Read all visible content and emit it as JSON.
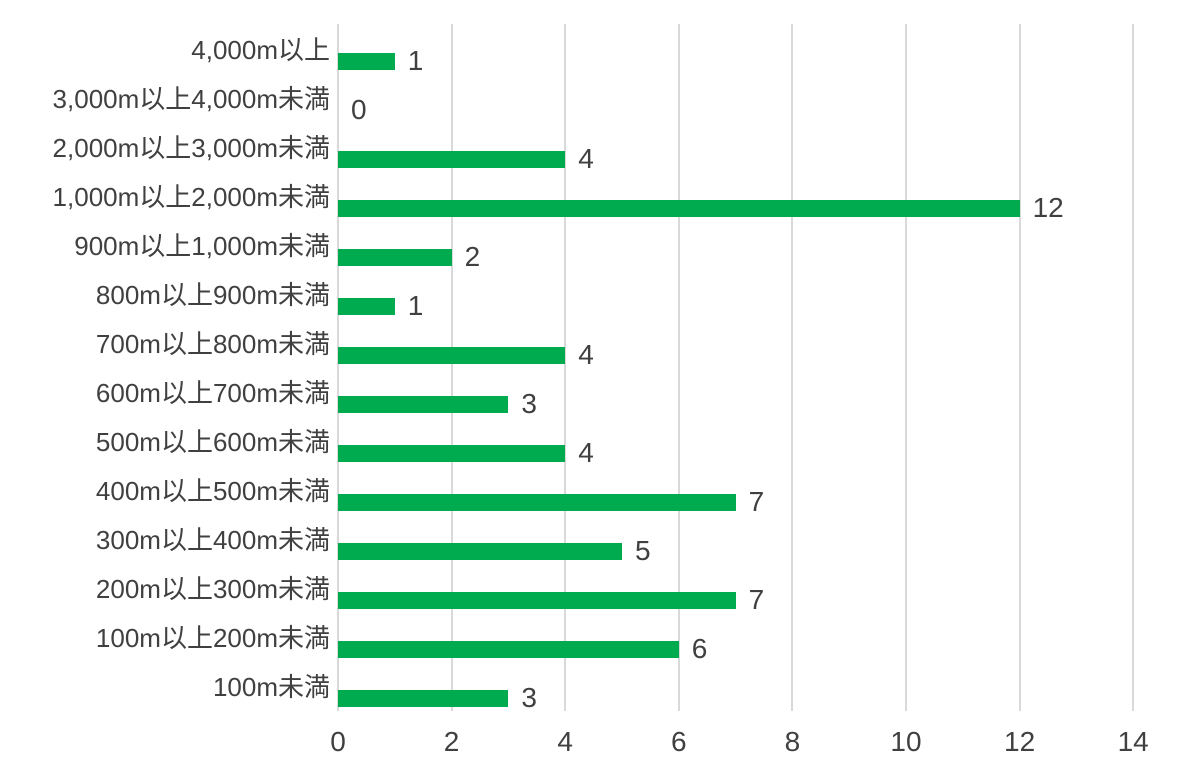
{
  "chart_data": {
    "type": "bar",
    "orientation": "horizontal",
    "title": "",
    "xlabel": "",
    "ylabel": "",
    "categories": [
      "4,000m以上",
      "3,000m以上4,000m未満",
      "2,000m以上3,000m未満",
      "1,000m以上2,000m未満",
      "900m以上1,000m未満",
      "800m以上900m未満",
      "700m以上800m未満",
      "600m以上700m未満",
      "500m以上600m未満",
      "400m以上500m未満",
      "300m以上400m未満",
      "200m以上300m未満",
      "100m以上200m未満",
      "100m未満"
    ],
    "values": [
      1,
      0,
      4,
      12,
      2,
      1,
      4,
      3,
      4,
      7,
      5,
      7,
      6,
      3
    ],
    "xlim": [
      0,
      14
    ],
    "xticks": [
      0,
      2,
      4,
      6,
      8,
      10,
      12,
      14
    ],
    "grid": true,
    "data_labels": true,
    "legend": "none",
    "colors": {
      "bar": "#00AB50",
      "gridline": "#D9D9D9",
      "text": "#404040",
      "background": "#FFFFFF"
    }
  }
}
